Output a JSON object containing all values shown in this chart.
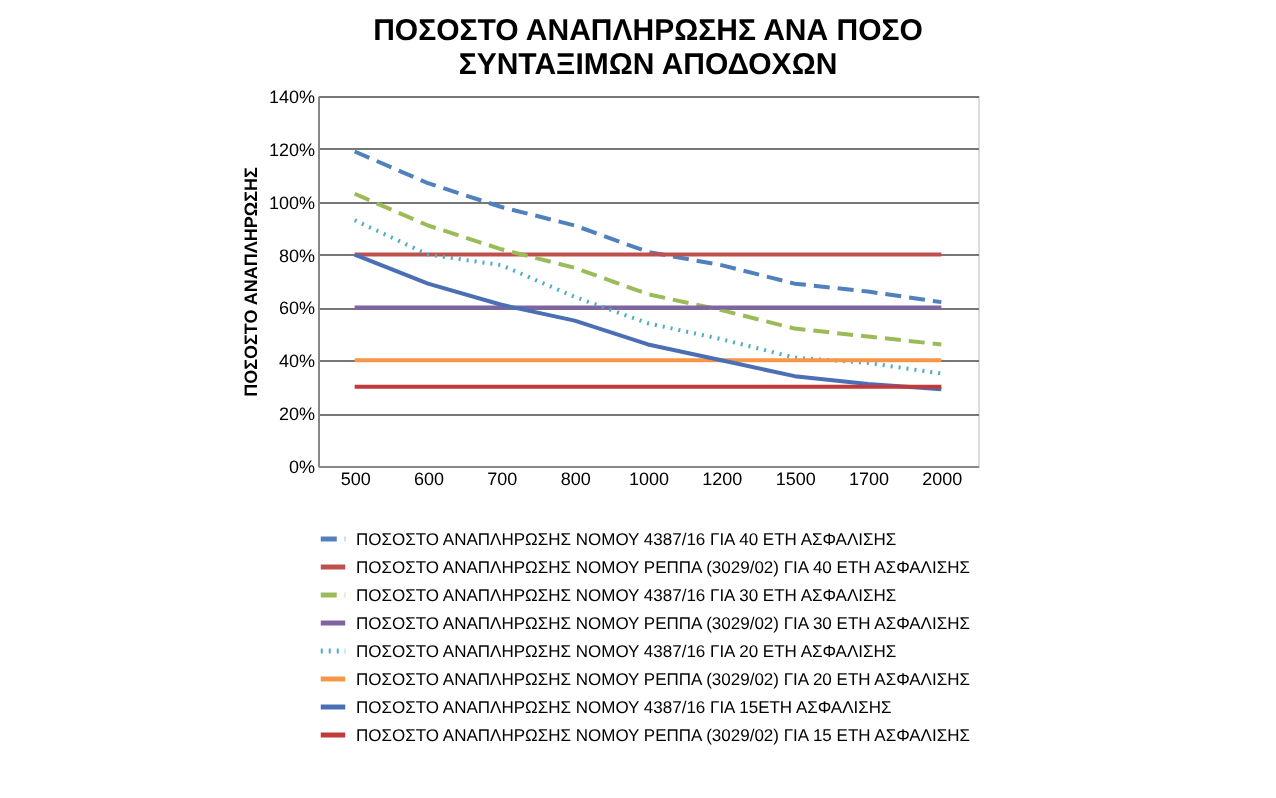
{
  "chart_data": {
    "type": "line",
    "title": "ΠΟΣΟΣΤΟ ΑΝΑΠΛΗΡΩΣΗΣ ΑΝΑ ΠΟΣΟ\nΣΥΝΤΑΞΙΜΩΝ ΑΠΟΔΟΧΩΝ",
    "ylabel": "ΠΟΣΟΣΤΟ ΑΝΑΠΛΗΡΩΣΗΣ",
    "categories": [
      "500",
      "600",
      "700",
      "800",
      "1000",
      "1200",
      "1500",
      "1700",
      "2000"
    ],
    "series": [
      {
        "name": "ΠΟΣΟΣΤΟ ΑΝΑΠΛΗΡΩΣΗΣ ΝΟΜΟΥ 4387/16 ΓΙΑ 40 ΕΤΗ ΑΣΦΑΛΙΣΗΣ",
        "color": "#4f81bd",
        "line_style": "dashed",
        "values": [
          119,
          107,
          98,
          91,
          81,
          76,
          69,
          66,
          62
        ]
      },
      {
        "name": "ΠΟΣΟΣΤΟ ΑΝΑΠΛΗΡΩΣΗΣ   ΝΟΜΟΥ ΡΕΠΠΑ (3029/02) ΓΙΑ 40 ΕΤΗ ΑΣΦΑΛΙΣΗΣ",
        "color": "#c0504d",
        "line_style": "solid",
        "values": [
          80,
          80,
          80,
          80,
          80,
          80,
          80,
          80,
          80
        ]
      },
      {
        "name": "ΠΟΣΟΣΤΟ ΑΝΑΠΛΗΡΩΣΗΣ ΝΟΜΟΥ 4387/16 ΓΙΑ 30 ΕΤΗ ΑΣΦΑΛΙΣΗΣ",
        "color": "#9bbb59",
        "line_style": "dashed",
        "values": [
          103,
          91,
          82,
          75,
          65,
          59,
          52,
          49,
          46
        ]
      },
      {
        "name": "ΠΟΣΟΣΤΟ ΑΝΑΠΛΗΡΩΣΗΣ   ΝΟΜΟΥ ΡΕΠΠΑ (3029/02) ΓΙΑ 30 ΕΤΗ ΑΣΦΑΛΙΣΗΣ",
        "color": "#8064a2",
        "line_style": "solid",
        "values": [
          60,
          60,
          60,
          60,
          60,
          60,
          60,
          60,
          60
        ]
      },
      {
        "name": "ΠΟΣΟΣΤΟ ΑΝΑΠΛΗΡΩΣΗΣ ΝΟΜΟΥ 4387/16 ΓΙΑ 20 ΕΤΗ ΑΣΦΑΛΙΣΗΣ",
        "color": "#4bacc6",
        "line_style": "dotted",
        "values": [
          93,
          80,
          76,
          64,
          54,
          48,
          41,
          39,
          35
        ]
      },
      {
        "name": "ΠΟΣΟΣΤΟ ΑΝΑΠΛΗΡΩΣΗΣ   ΝΟΜΟΥ ΡΕΠΠΑ (3029/02) ΓΙΑ 20 ΕΤΗ ΑΣΦΑΛΙΣΗΣ",
        "color": "#f79646",
        "line_style": "solid",
        "values": [
          40,
          40,
          40,
          40,
          40,
          40,
          40,
          40,
          40
        ]
      },
      {
        "name": "ΠΟΣΟΣΤΟ ΑΝΑΠΛΗΡΩΣΗΣ ΝΟΜΟΥ 4387/16 ΓΙΑ 15ΕΤΗ ΑΣΦΑΛΙΣΗΣ",
        "color": "#4a6fb5",
        "line_style": "solid",
        "values": [
          80,
          69,
          61,
          55,
          46,
          40,
          34,
          31,
          29
        ]
      },
      {
        "name": "ΠΟΣΟΣΤΟ ΑΝΑΠΛΗΡΩΣΗΣ   ΝΟΜΟΥ ΡΕΠΠΑ (3029/02) ΓΙΑ 15 ΕΤΗ ΑΣΦΑΛΙΣΗΣ",
        "color": "#c0393b",
        "line_style": "solid",
        "values": [
          30,
          30,
          30,
          30,
          30,
          30,
          30,
          30,
          30
        ]
      }
    ],
    "ylim": [
      0,
      140
    ],
    "yticks": [
      {
        "value": 0,
        "label": "0%"
      },
      {
        "value": 20,
        "label": "20%"
      },
      {
        "value": 40,
        "label": "40%"
      },
      {
        "value": 60,
        "label": "60%"
      },
      {
        "value": 80,
        "label": "80%"
      },
      {
        "value": 100,
        "label": "100%"
      },
      {
        "value": 120,
        "label": "120%"
      },
      {
        "value": 140,
        "label": "140%"
      }
    ],
    "grid": "y",
    "legend": "bottom",
    "marker": "none"
  }
}
